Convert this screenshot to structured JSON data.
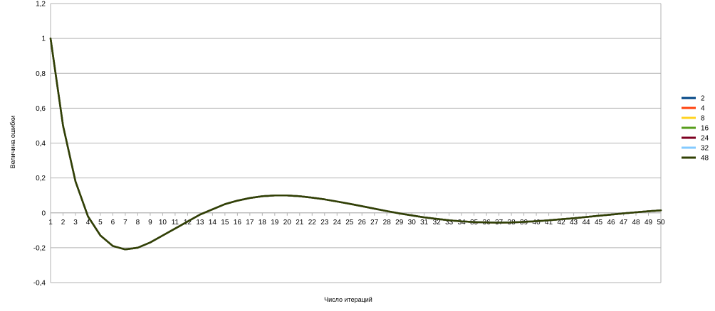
{
  "chart_data": {
    "type": "line",
    "title": "",
    "xlabel": "Число итераций",
    "ylabel": "Величина ошибки",
    "ylim": [
      -0.4,
      1.2
    ],
    "yticks": [
      "-0,4",
      "-0,2",
      "0",
      "0,2",
      "0,4",
      "0,6",
      "0,8",
      "1",
      "1,2"
    ],
    "grid": "horizontal",
    "legend_position": "right",
    "x": [
      1,
      2,
      3,
      4,
      5,
      6,
      7,
      8,
      9,
      10,
      11,
      12,
      13,
      14,
      15,
      16,
      17,
      18,
      19,
      20,
      21,
      22,
      23,
      24,
      25,
      26,
      27,
      28,
      29,
      30,
      31,
      32,
      33,
      34,
      35,
      36,
      37,
      38,
      39,
      40,
      41,
      42,
      43,
      44,
      45,
      46,
      47,
      48,
      49,
      50
    ],
    "series": [
      {
        "name": "2",
        "color": "#004586"
      },
      {
        "name": "4",
        "color": "#ff420e"
      },
      {
        "name": "8",
        "color": "#ffd320"
      },
      {
        "name": "16",
        "color": "#579d1c"
      },
      {
        "name": "24",
        "color": "#7e0021"
      },
      {
        "name": "32",
        "color": "#83caff"
      },
      {
        "name": "48",
        "color": "#314004"
      }
    ],
    "values": [
      1.0,
      0.5,
      0.18,
      -0.02,
      -0.13,
      -0.19,
      -0.21,
      -0.2,
      -0.17,
      -0.13,
      -0.09,
      -0.05,
      -0.01,
      0.02,
      0.05,
      0.07,
      0.085,
      0.095,
      0.1,
      0.1,
      0.095,
      0.087,
      0.077,
      0.065,
      0.052,
      0.038,
      0.024,
      0.01,
      -0.003,
      -0.015,
      -0.026,
      -0.035,
      -0.043,
      -0.049,
      -0.053,
      -0.055,
      -0.056,
      -0.055,
      -0.052,
      -0.048,
      -0.043,
      -0.037,
      -0.031,
      -0.024,
      -0.017,
      -0.01,
      -0.003,
      0.003,
      0.009,
      0.014
    ]
  }
}
